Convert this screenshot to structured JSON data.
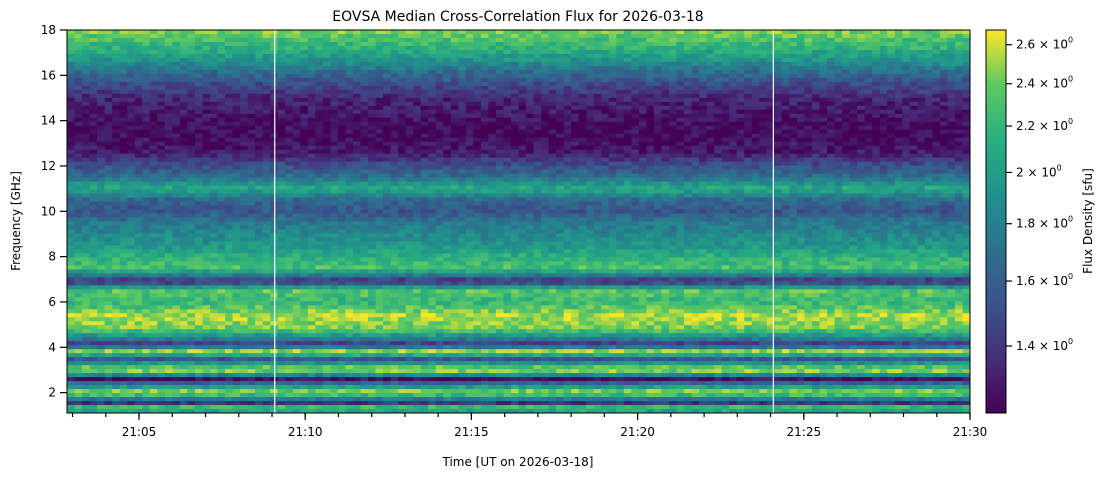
{
  "chart_data": {
    "type": "heatmap",
    "title": "EOVSA Median Cross-Correlation Flux for 2026-03-18",
    "xlabel": "Time [UT on 2026-03-18]",
    "ylabel": "Frequency [GHz]",
    "colorbar_label": "Flux Density [sfu]",
    "colormap": "viridis",
    "colorbar_scale": "log",
    "colorbar_range": [
      1.22,
      2.68
    ],
    "colorbar_ticks": [
      {
        "value": 1.4,
        "label_base": "1.4 × 10",
        "label_exp": "0"
      },
      {
        "value": 1.6,
        "label_base": "1.6 × 10",
        "label_exp": "0"
      },
      {
        "value": 1.8,
        "label_base": "1.8 × 10",
        "label_exp": "0"
      },
      {
        "value": 2.0,
        "label_base": "2 × 10",
        "label_exp": "0"
      },
      {
        "value": 2.2,
        "label_base": "2.2 × 10",
        "label_exp": "0"
      },
      {
        "value": 2.4,
        "label_base": "2.4 × 10",
        "label_exp": "0"
      },
      {
        "value": 2.6,
        "label_base": "2.6 × 10",
        "label_exp": "0"
      }
    ],
    "x_range": [
      "21:02:50",
      "21:30:00"
    ],
    "y_range": [
      1.1,
      18.0
    ],
    "x_ticks": [
      "21:05",
      "21:10",
      "21:15",
      "21:20",
      "21:25",
      "21:30"
    ],
    "y_ticks": [
      "2",
      "4",
      "6",
      "8",
      "10",
      "12",
      "14",
      "16",
      "18"
    ],
    "gap_times": [
      "21:09:05",
      "21:24:05"
    ],
    "frequency_profile": [
      {
        "f": 1.1,
        "v": 2.0
      },
      {
        "f": 1.45,
        "v": 2.3
      },
      {
        "f": 1.55,
        "v": 1.3
      },
      {
        "f": 2.0,
        "v": 2.55
      },
      {
        "f": 2.6,
        "v": 1.25
      },
      {
        "f": 3.0,
        "v": 2.6
      },
      {
        "f": 3.5,
        "v": 1.5
      },
      {
        "f": 3.8,
        "v": 2.6
      },
      {
        "f": 4.1,
        "v": 1.35
      },
      {
        "f": 4.8,
        "v": 2.4
      },
      {
        "f": 5.4,
        "v": 2.55
      },
      {
        "f": 6.0,
        "v": 2.2
      },
      {
        "f": 6.5,
        "v": 2.35
      },
      {
        "f": 6.9,
        "v": 1.3
      },
      {
        "f": 7.5,
        "v": 2.3
      },
      {
        "f": 8.0,
        "v": 2.15
      },
      {
        "f": 8.5,
        "v": 1.95
      },
      {
        "f": 9.0,
        "v": 1.85
      },
      {
        "f": 9.5,
        "v": 1.75
      },
      {
        "f": 10.0,
        "v": 1.55
      },
      {
        "f": 10.5,
        "v": 1.65
      },
      {
        "f": 11.0,
        "v": 2.1
      },
      {
        "f": 11.5,
        "v": 1.7
      },
      {
        "f": 12.2,
        "v": 1.45
      },
      {
        "f": 12.6,
        "v": 1.3
      },
      {
        "f": 13.2,
        "v": 1.25
      },
      {
        "f": 13.8,
        "v": 1.25
      },
      {
        "f": 14.5,
        "v": 1.3
      },
      {
        "f": 15.0,
        "v": 1.35
      },
      {
        "f": 15.6,
        "v": 1.5
      },
      {
        "f": 16.2,
        "v": 1.7
      },
      {
        "f": 16.8,
        "v": 2.0
      },
      {
        "f": 17.3,
        "v": 2.2
      },
      {
        "f": 18.0,
        "v": 2.45
      }
    ]
  }
}
